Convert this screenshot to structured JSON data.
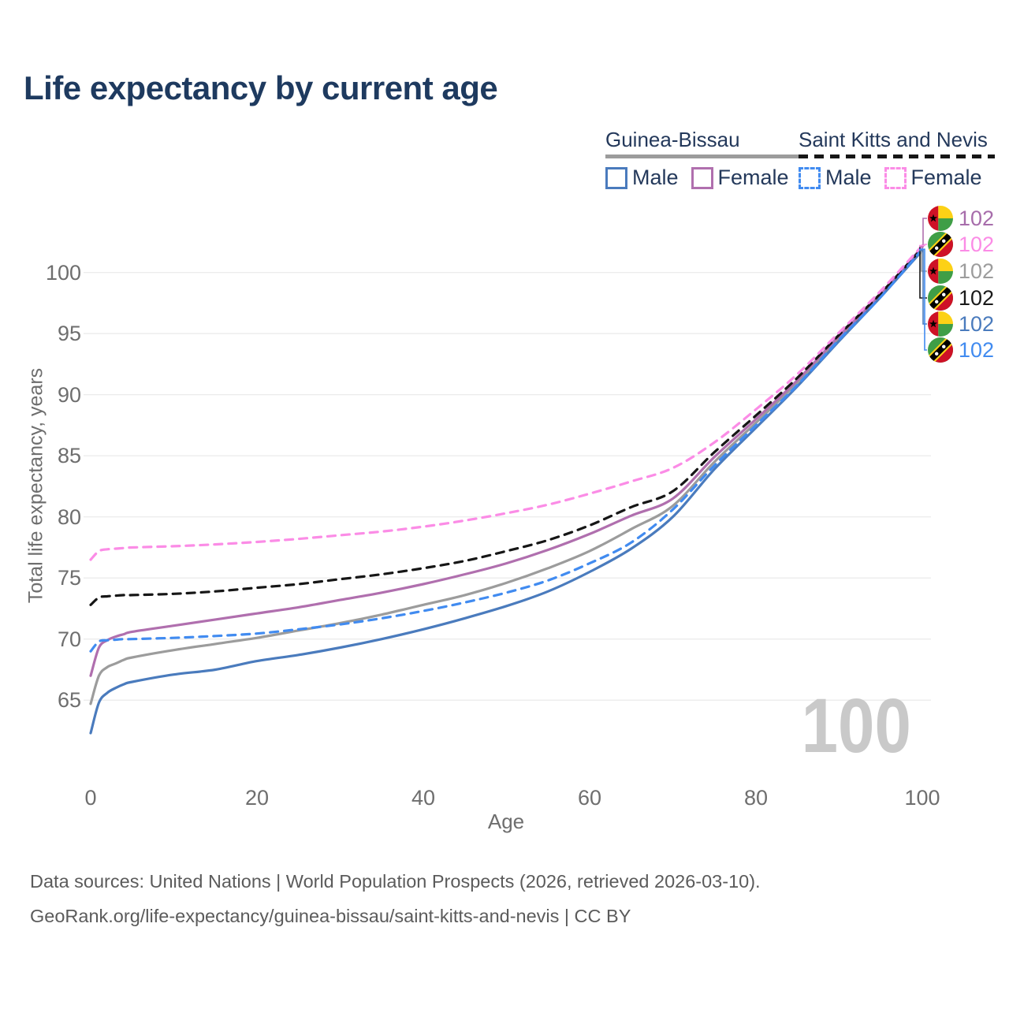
{
  "title": "Life expectancy by current age",
  "legend": {
    "groups": [
      {
        "country": "Guinea-Bissau",
        "line_style": "solid",
        "line_color": "#9c9c9c",
        "items": [
          {
            "label": "Male",
            "color": "#4a7bbd",
            "style": "solid"
          },
          {
            "label": "Female",
            "color": "#b06fae",
            "style": "solid"
          }
        ]
      },
      {
        "country": "Saint Kitts and Nevis",
        "line_style": "dashed",
        "line_color": "#161616",
        "items": [
          {
            "label": "Male",
            "color": "#418bf0",
            "style": "dashed"
          },
          {
            "label": "Female",
            "color": "#fb8ce6",
            "style": "dashed"
          }
        ]
      }
    ]
  },
  "chart_data": {
    "type": "line",
    "title": "Life expectancy by current age",
    "xlabel": "Age",
    "ylabel": "Total life expectancy, years",
    "x_ticks": [
      0,
      20,
      40,
      60,
      80,
      100
    ],
    "y_ticks": [
      65,
      70,
      75,
      80,
      85,
      90,
      95,
      100
    ],
    "xlim": [
      0,
      100
    ],
    "ylim": [
      61,
      103.5
    ],
    "grid": "horizontal",
    "legend_position": "top-right",
    "ages": [
      0,
      1,
      2,
      3,
      4,
      5,
      10,
      15,
      20,
      25,
      30,
      35,
      40,
      45,
      50,
      55,
      60,
      65,
      70,
      75,
      80,
      85,
      90,
      95,
      100
    ],
    "series": [
      {
        "id": "gw-total",
        "name": "Guinea-Bissau",
        "color": "#9c9c9c",
        "dash": "solid",
        "values": [
          64.7,
          67.0,
          67.7,
          68.0,
          68.3,
          68.5,
          69.1,
          69.6,
          70.1,
          70.7,
          71.3,
          72.0,
          72.8,
          73.6,
          74.6,
          75.8,
          77.2,
          79.0,
          80.9,
          84.5,
          87.7,
          91.0,
          94.6,
          98.1,
          101.9
        ]
      },
      {
        "id": "gw-female",
        "name": "Guinea-Bissau Female",
        "color": "#b06fae",
        "dash": "solid",
        "values": [
          67.0,
          69.3,
          69.9,
          70.2,
          70.4,
          70.6,
          71.1,
          71.6,
          72.1,
          72.6,
          73.2,
          73.8,
          74.5,
          75.3,
          76.2,
          77.3,
          78.6,
          80.1,
          81.5,
          84.9,
          88.0,
          91.2,
          94.8,
          98.2,
          102.1
        ]
      },
      {
        "id": "gw-male",
        "name": "Guinea-Bissau Male",
        "color": "#4a7bbd",
        "dash": "solid",
        "values": [
          62.3,
          64.8,
          65.6,
          66.0,
          66.3,
          66.5,
          67.1,
          67.5,
          68.2,
          68.7,
          69.3,
          70.0,
          70.8,
          71.7,
          72.7,
          73.9,
          75.5,
          77.4,
          80.0,
          83.9,
          87.3,
          90.7,
          94.4,
          98.0,
          101.8
        ]
      },
      {
        "id": "kn-total",
        "name": "Saint Kitts and Nevis",
        "color": "#161616",
        "dash": "dashed",
        "values": [
          72.8,
          73.4,
          73.5,
          73.55,
          73.6,
          73.6,
          73.7,
          73.9,
          74.2,
          74.5,
          74.9,
          75.3,
          75.8,
          76.4,
          77.2,
          78.1,
          79.3,
          80.8,
          82.1,
          85.3,
          88.3,
          91.4,
          94.9,
          98.3,
          102.0
        ]
      },
      {
        "id": "kn-male",
        "name": "Saint Kitts and Nevis Male",
        "color": "#418bf0",
        "dash": "dashed",
        "values": [
          69.0,
          69.8,
          69.9,
          69.95,
          70.0,
          70.0,
          70.1,
          70.25,
          70.45,
          70.8,
          71.2,
          71.7,
          72.3,
          73.0,
          73.8,
          74.8,
          76.2,
          77.9,
          80.6,
          84.2,
          87.5,
          90.8,
          94.5,
          98.0,
          101.9
        ]
      },
      {
        "id": "kn-female",
        "name": "Saint Kitts and Nevis Female",
        "color": "#fb8ce6",
        "dash": "dashed",
        "values": [
          76.5,
          77.2,
          77.35,
          77.4,
          77.45,
          77.5,
          77.6,
          77.75,
          77.95,
          78.2,
          78.5,
          78.8,
          79.2,
          79.7,
          80.3,
          81.0,
          81.9,
          82.9,
          84.0,
          86.1,
          88.8,
          91.7,
          95.1,
          98.5,
          102.2
        ]
      }
    ],
    "end_labels": [
      {
        "series": "gw-female",
        "flag": "guinea-bissau",
        "value": "102",
        "color": "#a76dab"
      },
      {
        "series": "kn-female",
        "flag": "saint-kitts-and-nevis",
        "value": "102",
        "color": "#fb8ce6"
      },
      {
        "series": "gw-total",
        "flag": "guinea-bissau",
        "value": "102",
        "color": "#9c9c9c"
      },
      {
        "series": "kn-total",
        "flag": "saint-kitts-and-nevis",
        "value": "102",
        "color": "#1a1a1a"
      },
      {
        "series": "gw-male",
        "flag": "guinea-bissau",
        "value": "102",
        "color": "#4a7bbd"
      },
      {
        "series": "kn-male",
        "flag": "saint-kitts-and-nevis",
        "value": "102",
        "color": "#418bf0"
      }
    ],
    "watermark": "100"
  },
  "footer": {
    "line1": "Data sources: United Nations | World Population Prospects (2026, retrieved 2026-03-10).",
    "line2": "GeoRank.org/life-expectancy/guinea-bissau/saint-kitts-and-nevis | CC BY"
  }
}
